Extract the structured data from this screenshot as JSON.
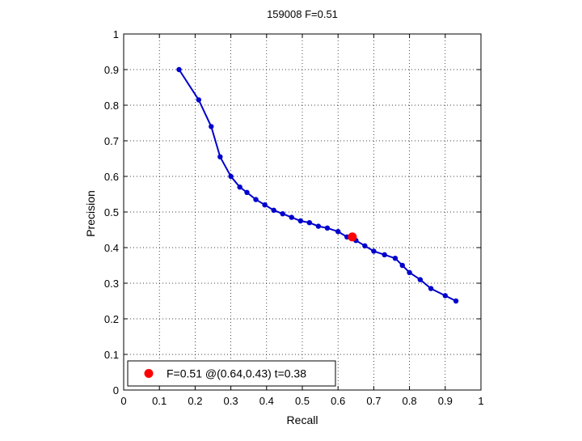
{
  "chart_data": {
    "type": "line",
    "title": "159008 F=0.51",
    "xlabel": "Recall",
    "ylabel": "Precision",
    "xlim": [
      0,
      1
    ],
    "ylim": [
      0,
      1
    ],
    "xticks": [
      "0",
      "0.1",
      "0.2",
      "0.3",
      "0.4",
      "0.5",
      "0.6",
      "0.7",
      "0.8",
      "0.9",
      "1"
    ],
    "yticks": [
      "0",
      "0.1",
      "0.2",
      "0.3",
      "0.4",
      "0.5",
      "0.6",
      "0.7",
      "0.8",
      "0.9",
      "1"
    ],
    "grid": true,
    "grid_style": "dotted",
    "legend_position": "bottom-left",
    "series": [
      {
        "color": "#0000cc",
        "marker": "dot",
        "x": [
          0.155,
          0.21,
          0.245,
          0.27,
          0.3,
          0.325,
          0.345,
          0.37,
          0.395,
          0.42,
          0.445,
          0.47,
          0.495,
          0.52,
          0.545,
          0.57,
          0.6,
          0.625,
          0.65,
          0.675,
          0.7,
          0.73,
          0.76,
          0.78,
          0.8,
          0.83,
          0.86,
          0.9,
          0.93
        ],
        "y": [
          0.9,
          0.815,
          0.74,
          0.655,
          0.6,
          0.57,
          0.555,
          0.535,
          0.52,
          0.505,
          0.495,
          0.485,
          0.475,
          0.47,
          0.46,
          0.455,
          0.445,
          0.43,
          0.42,
          0.405,
          0.39,
          0.38,
          0.37,
          0.35,
          0.33,
          0.31,
          0.285,
          0.265,
          0.25
        ]
      }
    ],
    "highlight_point": {
      "x": 0.64,
      "y": 0.43,
      "color": "#ff0000",
      "label": "F=0.51 @(0.64,0.43) t=0.38"
    }
  }
}
